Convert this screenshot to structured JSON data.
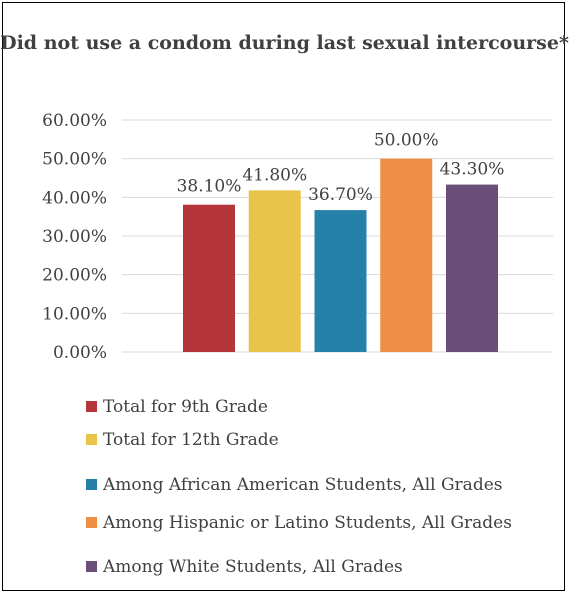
{
  "chart_data": {
    "type": "bar",
    "title": "Did not use a condom during last sexual intercourse*",
    "categories": [
      "Total for 9th Grade",
      "Total for 12th Grade",
      "Among African American Students, All Grades",
      "Among Hispanic or Latino Students, All Grades",
      "Among White Students, All Grades"
    ],
    "values": [
      38.1,
      41.8,
      36.7,
      50.0,
      43.3
    ],
    "data_labels": [
      "38.10%",
      "41.80%",
      "36.70%",
      "50.00%",
      "43.30%"
    ],
    "colors": [
      "#b5363a",
      "#e8c54a",
      "#2581a8",
      "#ee8f45",
      "#6a4e78"
    ],
    "ylim": [
      0,
      60
    ],
    "yticks": [
      0,
      10,
      20,
      30,
      40,
      50,
      60
    ],
    "ytick_labels": [
      "0.00%",
      "10.00%",
      "20.00%",
      "30.00%",
      "40.00%",
      "50.00%",
      "60.00%"
    ],
    "grid": true,
    "legend_position": "bottom"
  },
  "legend": {
    "items": [
      {
        "label": "Total for 9th Grade",
        "color": "#b5363a"
      },
      {
        "label": "Total for 12th Grade",
        "color": "#e8c54a"
      },
      {
        "label": "Among African American Students, All Grades",
        "color": "#2581a8"
      },
      {
        "label": "Among Hispanic or Latino Students, All Grades",
        "color": "#ee8f45"
      },
      {
        "label": "Among White Students, All Grades",
        "color": "#6a4e78"
      }
    ]
  }
}
